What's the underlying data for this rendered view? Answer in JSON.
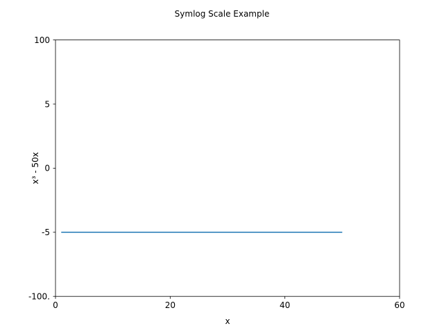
{
  "chart_data": {
    "type": "line",
    "title": "Symlog Scale Example",
    "xlabel": "x",
    "ylabel": "x³ - 50x",
    "xlim": [
      0,
      60
    ],
    "x_ticks": [
      0,
      20,
      40,
      60
    ],
    "x_tick_labels": [
      "0",
      "20",
      "40",
      "60"
    ],
    "y_tick_labels": [
      "100",
      "5",
      "0",
      "-5",
      "-100."
    ],
    "grid": false,
    "legend": null,
    "series": [
      {
        "name": "x³ - 50x",
        "color": "#1f77b4",
        "x": [
          1,
          50
        ],
        "y": [
          -5,
          -5
        ]
      }
    ]
  }
}
